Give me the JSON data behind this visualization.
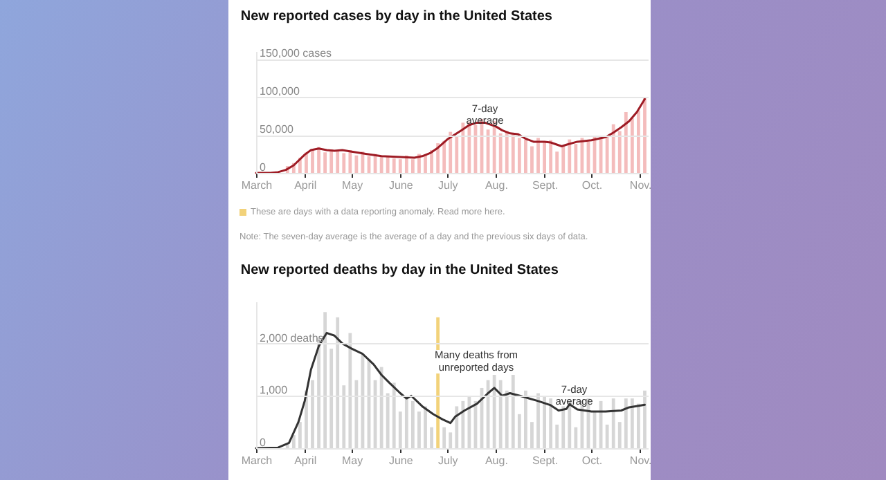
{
  "chart_data": [
    {
      "type": "bar",
      "title": "New reported cases by day in the United States",
      "xlim": [
        "--03-01",
        "--11-06"
      ],
      "ylim": [
        0,
        160000
      ],
      "xticks": [
        {
          "value": "--03-01",
          "label": "March"
        },
        {
          "value": "--04-01",
          "label": "April"
        },
        {
          "value": "--05-01",
          "label": "May"
        },
        {
          "value": "--06-01",
          "label": "June"
        },
        {
          "value": "--07-01",
          "label": "July"
        },
        {
          "value": "--08-01",
          "label": "Aug."
        },
        {
          "value": "--09-01",
          "label": "Sept."
        },
        {
          "value": "--10-01",
          "label": "Oct."
        },
        {
          "value": "--11-01",
          "label": "Nov."
        }
      ],
      "yticks": [
        {
          "value": 0,
          "label": "0"
        },
        {
          "value": 50000,
          "label": "50,000"
        },
        {
          "value": 100000,
          "label": "100,000"
        },
        {
          "value": 150000,
          "label": "150,000 cases"
        }
      ],
      "grid": "y",
      "x": [
        "--03-01",
        "--03-05",
        "--03-09",
        "--03-13",
        "--03-17",
        "--03-21",
        "--03-25",
        "--03-29",
        "--04-02",
        "--04-06",
        "--04-10",
        "--04-14",
        "--04-18",
        "--04-22",
        "--04-26",
        "--04-30",
        "--05-04",
        "--05-08",
        "--05-12",
        "--05-16",
        "--05-20",
        "--05-24",
        "--05-28",
        "--06-01",
        "--06-05",
        "--06-09",
        "--06-13",
        "--06-17",
        "--06-21",
        "--06-25",
        "--06-29",
        "--07-03",
        "--07-07",
        "--07-11",
        "--07-15",
        "--07-19",
        "--07-23",
        "--07-27",
        "--07-31",
        "--08-04",
        "--08-08",
        "--08-12",
        "--08-16",
        "--08-20",
        "--08-24",
        "--08-28",
        "--09-01",
        "--09-05",
        "--09-09",
        "--09-13",
        "--09-17",
        "--09-21",
        "--09-25",
        "--09-29",
        "--10-03",
        "--10-07",
        "--10-11",
        "--10-15",
        "--10-19",
        "--10-23",
        "--10-27",
        "--10-31",
        "--11-04"
      ],
      "series": [
        {
          "color": "#f4bcbc",
          "values": [
            0,
            0,
            0,
            1000,
            null,
            9000,
            13000,
            20000,
            27000,
            30000,
            34000,
            27000,
            31000,
            29000,
            26000,
            30000,
            23000,
            28000,
            22000,
            25000,
            22000,
            21000,
            19000,
            18000,
            23000,
            18000,
            25000,
            24000,
            30000,
            39000,
            42000,
            54000,
            48000,
            66000,
            67000,
            63000,
            71000,
            57000,
            68000,
            52000,
            55000,
            52000,
            46000,
            44000,
            35000,
            46000,
            40000,
            43000,
            28000,
            35000,
            44000,
            38000,
            46000,
            41000,
            48000,
            49000,
            48000,
            64000,
            55000,
            80000,
            72000,
            82000,
            100000
          ]
        },
        {
          "type": "line",
          "color": "#9e1b24",
          "x": [
            "--03-01",
            "--03-10",
            "--03-15",
            "--03-20",
            "--03-25",
            "--04-01",
            "--04-05",
            "--04-10",
            "--04-15",
            "--04-20",
            "--04-25",
            "--05-01",
            "--05-10",
            "--05-20",
            "--06-01",
            "--06-10",
            "--06-15",
            "--06-20",
            "--06-25",
            "--07-01",
            "--07-10",
            "--07-15",
            "--07-20",
            "--07-25",
            "--08-01",
            "--08-05",
            "--08-10",
            "--08-15",
            "--08-20",
            "--08-25",
            "--09-01",
            "--09-05",
            "--09-12",
            "--09-15",
            "--09-22",
            "--10-01",
            "--10-10",
            "--10-15",
            "--10-20",
            "--10-25",
            "--10-30",
            "--11-04"
          ],
          "values": [
            0,
            0,
            1000,
            4000,
            10000,
            24000,
            30000,
            32000,
            30000,
            29000,
            30000,
            28000,
            25000,
            22000,
            21000,
            20000,
            22000,
            26000,
            33000,
            44000,
            56000,
            63000,
            66000,
            66000,
            61000,
            56000,
            52000,
            51000,
            45000,
            41000,
            41000,
            40000,
            35000,
            37000,
            41000,
            43000,
            47000,
            53000,
            60000,
            68000,
            80000,
            97000
          ]
        }
      ],
      "annotations": [
        {
          "text": "7-day average",
          "x": "--07-25",
          "y": 76000
        },
        "These are days with a data reporting anomaly. Read more here.",
        "Note: The seven-day average is the average of a day and the previous six days of data."
      ]
    },
    {
      "type": "bar",
      "title": "New reported deaths by day in the United States",
      "xlim": [
        "--03-01",
        "--11-06"
      ],
      "ylim": [
        0,
        2800
      ],
      "xticks": [
        {
          "value": "--03-01",
          "label": "March"
        },
        {
          "value": "--04-01",
          "label": "April"
        },
        {
          "value": "--05-01",
          "label": "May"
        },
        {
          "value": "--06-01",
          "label": "June"
        },
        {
          "value": "--07-01",
          "label": "July"
        },
        {
          "value": "--08-01",
          "label": "Aug."
        },
        {
          "value": "--09-01",
          "label": "Sept."
        },
        {
          "value": "--10-01",
          "label": "Oct."
        },
        {
          "value": "--11-01",
          "label": "Nov."
        }
      ],
      "yticks": [
        {
          "value": 0,
          "label": "0"
        },
        {
          "value": 1000,
          "label": "1,000"
        },
        {
          "value": 2000,
          "label": "2,000 deaths"
        }
      ],
      "grid": "y",
      "x": [
        "--03-01",
        "--03-05",
        "--03-09",
        "--03-13",
        "--03-17",
        "--03-21",
        "--03-25",
        "--03-29",
        "--04-02",
        "--04-06",
        "--04-10",
        "--04-14",
        "--04-18",
        "--04-22",
        "--04-26",
        "--04-30",
        "--05-04",
        "--05-08",
        "--05-12",
        "--05-16",
        "--05-20",
        "--05-24",
        "--05-28",
        "--06-01",
        "--06-05",
        "--06-09",
        "--06-13",
        "--06-17",
        "--06-21",
        "--06-25",
        "--06-29",
        "--07-03",
        "--07-07",
        "--07-11",
        "--07-15",
        "--07-19",
        "--07-23",
        "--07-27",
        "--07-31",
        "--08-04",
        "--08-08",
        "--08-12",
        "--08-16",
        "--08-20",
        "--08-24",
        "--08-28",
        "--09-01",
        "--09-05",
        "--09-09",
        "--09-13",
        "--09-17",
        "--09-21",
        "--09-25",
        "--09-29",
        "--10-03",
        "--10-07",
        "--10-11",
        "--10-15",
        "--10-19",
        "--10-23",
        "--10-27",
        "--10-31",
        "--11-04"
      ],
      "series": [
        {
          "color": "#d6d6d6",
          "values": [
            0,
            0,
            0,
            0,
            null,
            80,
            250,
            500,
            1100,
            1300,
            2100,
            2600,
            1900,
            2500,
            1200,
            2200,
            1300,
            1800,
            1700,
            1300,
            1550,
            1050,
            1250,
            700,
            1000,
            900,
            700,
            800,
            400,
            null,
            400,
            300,
            800,
            900,
            1000,
            900,
            1150,
            1300,
            1400,
            1300,
            1100,
            1400,
            650,
            1100,
            500,
            1050,
            1000,
            950,
            450,
            800,
            900,
            400,
            900,
            950,
            700,
            900,
            450,
            950,
            500,
            950,
            950,
            850,
            1100
          ]
        },
        {
          "color": "#f2d27a",
          "x": [
            "--06-25"
          ],
          "values": [
            2500
          ]
        },
        {
          "type": "line",
          "color": "#333333",
          "x": [
            "--03-01",
            "--03-15",
            "--03-22",
            "--03-28",
            "--04-01",
            "--04-05",
            "--04-10",
            "--04-15",
            "--04-20",
            "--04-25",
            "--05-01",
            "--05-08",
            "--05-15",
            "--05-20",
            "--05-25",
            "--06-01",
            "--06-05",
            "--06-08",
            "--06-15",
            "--06-22",
            "--06-28",
            "--07-03",
            "--07-06",
            "--07-12",
            "--07-20",
            "--07-27",
            "--07-31",
            "--08-05",
            "--08-10",
            "--08-20",
            "--08-28",
            "--09-05",
            "--09-10",
            "--09-15",
            "--09-17",
            "--09-22",
            "--10-01",
            "--10-10",
            "--10-20",
            "--10-25",
            "--11-04"
          ],
          "values": [
            0,
            10,
            100,
            500,
            900,
            1500,
            1950,
            2200,
            2150,
            2000,
            1900,
            1800,
            1600,
            1400,
            1250,
            1050,
            950,
            1000,
            800,
            650,
            550,
            480,
            600,
            720,
            850,
            1050,
            1150,
            1000,
            1050,
            970,
            900,
            820,
            720,
            750,
            840,
            740,
            700,
            700,
            720,
            780,
            830
          ]
        }
      ],
      "annotations": [
        "Many deaths from unreported days",
        {
          "text": "7-day average",
          "x": "--09-20",
          "y": 1000
        }
      ]
    }
  ]
}
